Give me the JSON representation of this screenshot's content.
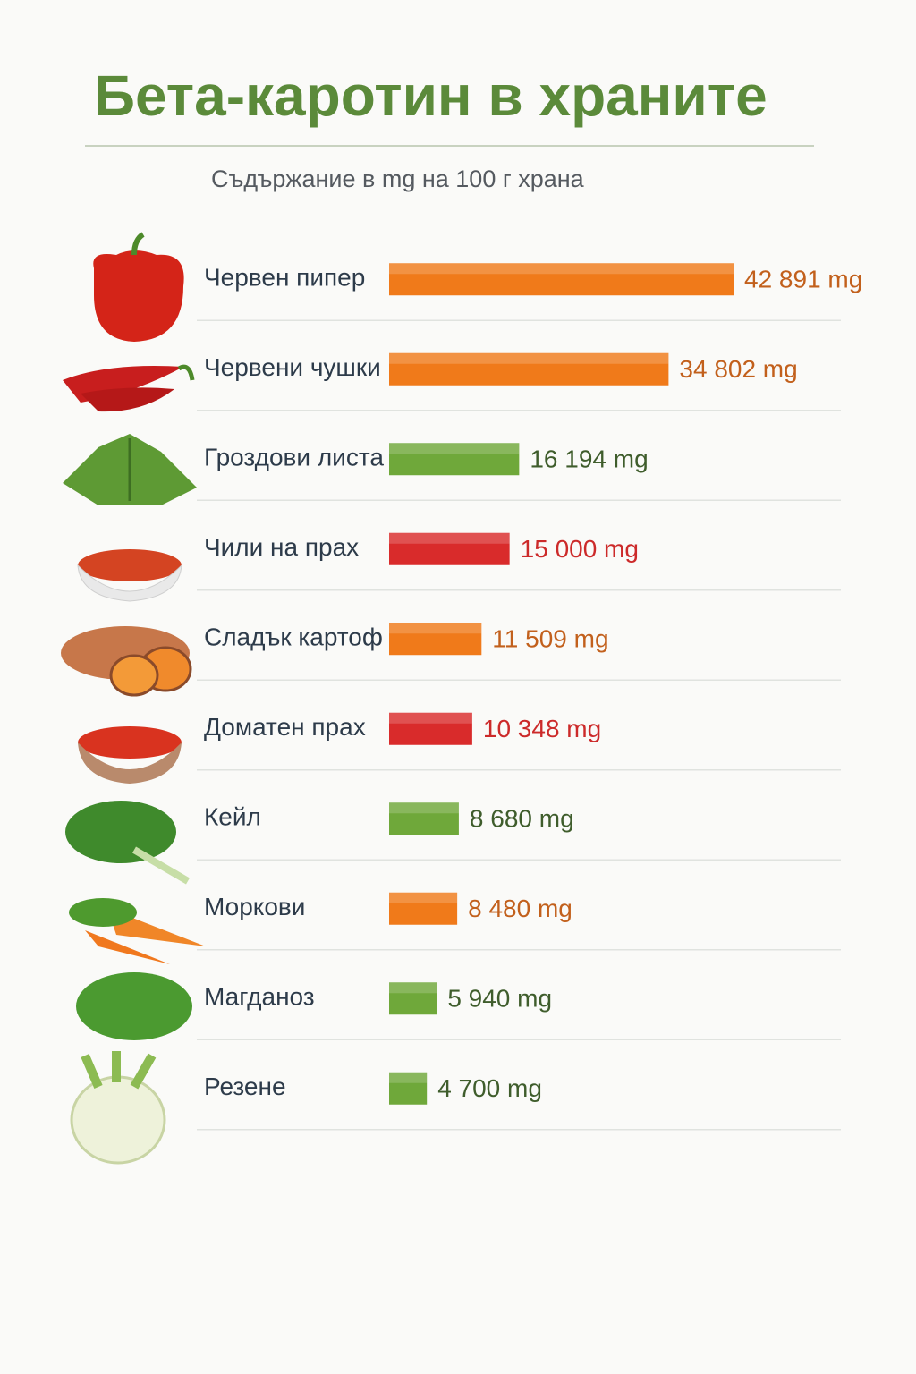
{
  "chart_data": {
    "type": "bar",
    "orientation": "horizontal",
    "title": "Бета-каротин в храните",
    "subtitle": "Съдържание в mg на 100 г храна",
    "categories": [
      "Червен пипер",
      "Червени чушки",
      "Гроздови листа",
      "Чили на прах",
      "Сладък картоф",
      "Доматен прах",
      "Кейл",
      "Моркови",
      "Магданоз",
      "Резене"
    ],
    "values": [
      42891,
      34802,
      16194,
      15000,
      11509,
      10348,
      8680,
      8480,
      5940,
      4700
    ],
    "value_labels": [
      "42 891 mg",
      "34 802 mg",
      "16 194 mg",
      "15 000 mg",
      "11 509 mg",
      "10 348 mg",
      "8 680 mg",
      "8 480 mg",
      "5 940 mg",
      "4 700 mg"
    ],
    "colors": [
      "#f07a1a",
      "#f07a1a",
      "#6fa83a",
      "#d92b2b",
      "#f07a1a",
      "#d92b2b",
      "#6fa83a",
      "#f07a1a",
      "#6fa83a",
      "#6fa83a"
    ],
    "label_colors": [
      "#c2601c",
      "#c2601c",
      "#3f5d2c",
      "#cc2a2a",
      "#c2601c",
      "#cc2a2a",
      "#3f5d2c",
      "#c2601c",
      "#3f5d2c",
      "#3f5d2c"
    ]
  }
}
